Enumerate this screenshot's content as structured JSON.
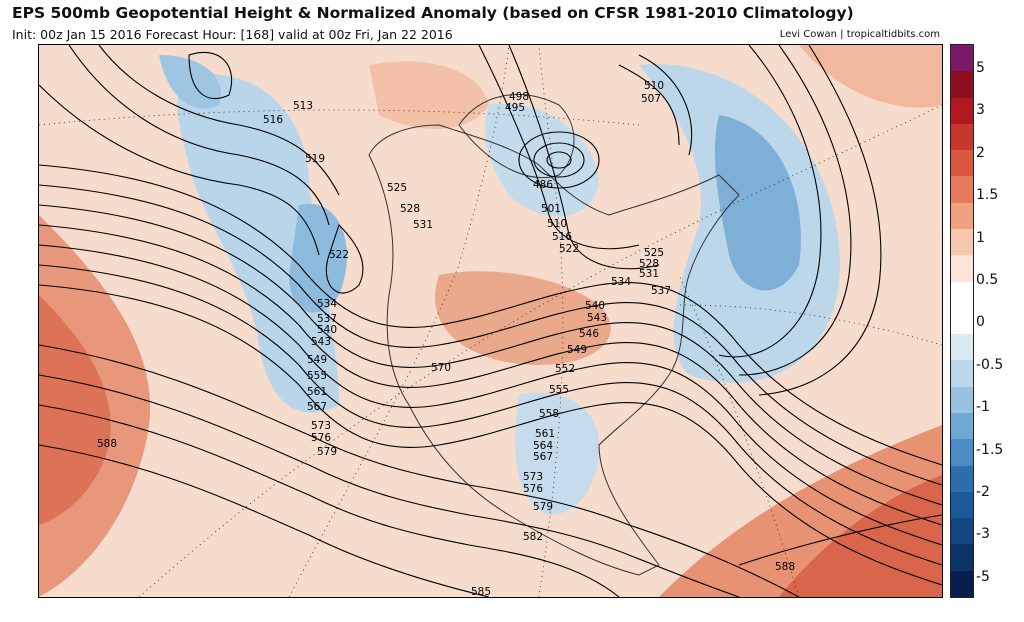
{
  "title": "EPS 500mb Geopotential Height & Normalized Anomaly (based on CFSR 1981-2010 Climatology)",
  "subtitle": "Init: 00z Jan 15 2016   Forecast Hour: [168]   valid at 00z Fri, Jan 22 2016",
  "credit": "Levi Cowan | tropicaltidbits.com",
  "colorbar": {
    "labels": [
      "5",
      "3",
      "2",
      "1.5",
      "1",
      "0.5",
      "0",
      "-0.5",
      "-1",
      "-1.5",
      "-2",
      "-3",
      "-5"
    ],
    "colors": [
      "#7b1a6b",
      "#8e0f1e",
      "#b0171f",
      "#c8382c",
      "#d9563f",
      "#e57a5c",
      "#f0a27f",
      "#f7c7ae",
      "#fce5d8",
      "#ffffff",
      "#ffffff",
      "#dbe9f3",
      "#bcd7ea",
      "#98c2df",
      "#6ea8d3",
      "#4a8cc3",
      "#2c6faf",
      "#1b5a9a",
      "#124682",
      "#0a3366",
      "#081f4d"
    ]
  },
  "contour_labels": [
    "513",
    "516",
    "519",
    "522",
    "525",
    "528",
    "531",
    "534",
    "537",
    "540",
    "543",
    "549",
    "555",
    "561",
    "567",
    "573",
    "576",
    "579",
    "588",
    "498",
    "495",
    "486",
    "501",
    "510",
    "516",
    "522",
    "510",
    "507",
    "525",
    "528",
    "531",
    "534",
    "537",
    "540",
    "543",
    "546",
    "549",
    "552",
    "555",
    "558",
    "561",
    "564",
    "567",
    "570",
    "573",
    "576",
    "579",
    "582",
    "585",
    "588"
  ]
}
